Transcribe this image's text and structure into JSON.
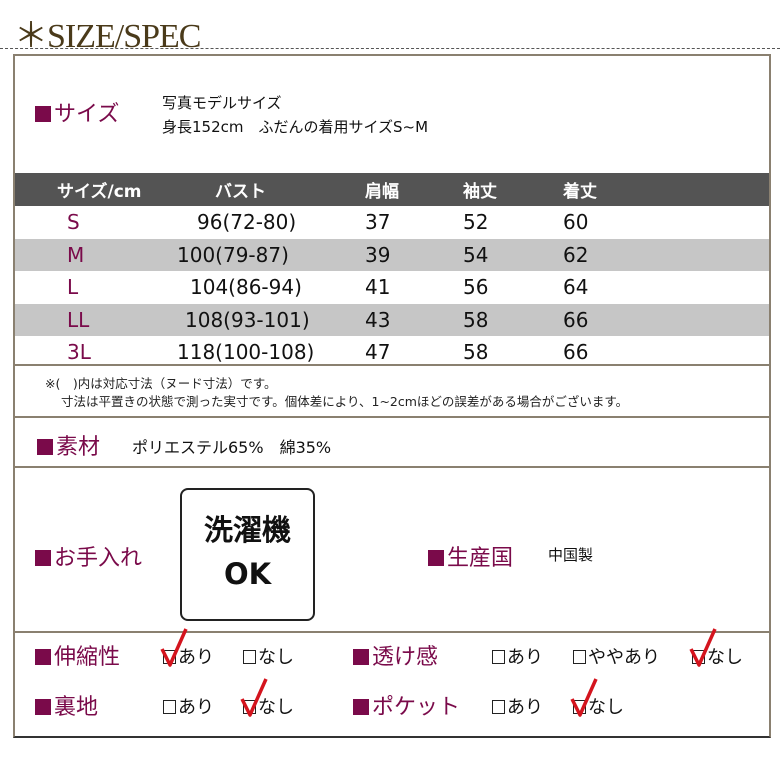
{
  "title": "＊SIZE/SPEC",
  "size": {
    "label": "サイズ",
    "model_line1": "写真モデルサイズ",
    "model_line2": "身長152cm　ふだんの着用サイズS~M"
  },
  "table": {
    "headers": [
      "サイズ/cm",
      "バスト",
      "肩幅",
      "袖丈",
      "着丈"
    ],
    "rows": [
      [
        "S",
        "96(72-80)",
        "37",
        "52",
        "60"
      ],
      [
        "M",
        "100(79-87)",
        "39",
        "54",
        "62"
      ],
      [
        "L",
        "104(86-94)",
        "41",
        "56",
        "64"
      ],
      [
        "LL",
        "108(93-101)",
        "43",
        "58",
        "66"
      ],
      [
        "3L",
        "118(100-108)",
        "47",
        "58",
        "66"
      ]
    ]
  },
  "notes": [
    "※(　)内は対応寸法（ヌード寸法）です。",
    "寸法は平置きの状態で測った実寸です。個体差により、1~2cmほどの誤差がある場合がございます。"
  ],
  "material": {
    "label": "素材",
    "value": "ポリエステル65%　綿35%"
  },
  "care": {
    "label": "お手入れ",
    "badge_line1": "洗濯機",
    "badge_line2": "OK"
  },
  "origin": {
    "label": "生産国",
    "value": "中国製"
  },
  "features": {
    "stretch": {
      "label": "伸縮性",
      "options": [
        "あり",
        "なし"
      ],
      "checked": "あり"
    },
    "sheer": {
      "label": "透け感",
      "options": [
        "あり",
        "ややあり",
        "なし"
      ],
      "checked": "なし"
    },
    "lining": {
      "label": "裏地",
      "options": [
        "あり",
        "なし"
      ],
      "checked": "なし"
    },
    "pocket": {
      "label": "ポケット",
      "options": [
        "あり",
        "なし"
      ],
      "checked": "なし"
    }
  },
  "colors": {
    "accent": "#7a0a4a",
    "check": "#d4141e",
    "header": "#545454",
    "stripe": "#c6c6c6"
  }
}
